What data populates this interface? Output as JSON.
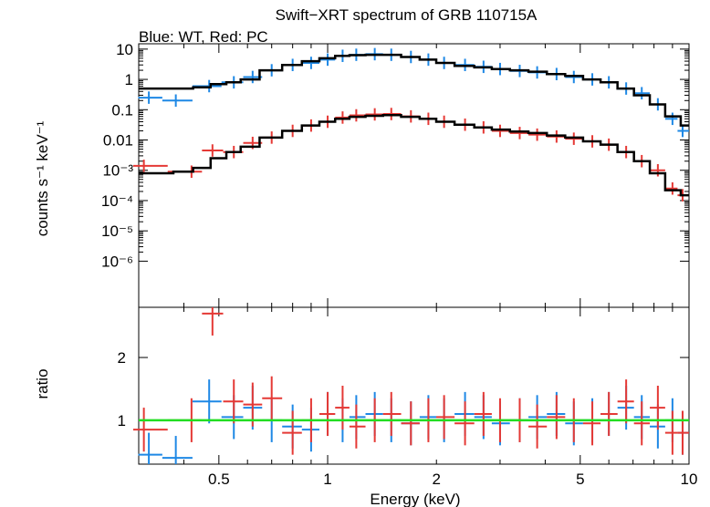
{
  "chart_data": [
    {
      "type": "scatter",
      "title": "Swift−XRT spectrum of GRB 110715A",
      "subtitle": "Blue: WT, Red: PC",
      "xlabel": "Energy (keV)",
      "ylabel": "counts s⁻¹ keV⁻¹",
      "xscale": "log",
      "yscale": "log",
      "xlim": [
        0.3,
        10
      ],
      "ylim": [
        3e-08,
        15
      ],
      "y_ticks": [
        {
          "value": 10,
          "label": "10"
        },
        {
          "value": 1,
          "label": "1"
        },
        {
          "value": 0.1,
          "label": "0.1"
        },
        {
          "value": 0.01,
          "label": "0.01"
        },
        {
          "value": 0.001,
          "label": "10⁻³"
        },
        {
          "value": 0.0001,
          "label": "10⁻⁴"
        },
        {
          "value": 1e-05,
          "label": "10⁻⁵"
        },
        {
          "value": 1e-06,
          "label": "10⁻⁶"
        }
      ],
      "series": [
        {
          "color": "#1e88e5",
          "x": [
            0.32,
            0.38,
            0.47,
            0.55,
            0.62,
            0.7,
            0.8,
            0.9,
            1.0,
            1.1,
            1.2,
            1.35,
            1.5,
            1.7,
            1.9,
            2.1,
            2.4,
            2.7,
            3.0,
            3.4,
            3.8,
            4.3,
            4.8,
            5.4,
            6.0,
            6.7,
            7.4,
            8.2,
            9.0,
            9.6
          ],
          "y": [
            0.25,
            0.2,
            0.6,
            0.8,
            1.2,
            2.0,
            3.0,
            3.5,
            4.5,
            6.0,
            6.5,
            6.8,
            6.5,
            5.5,
            4.5,
            3.5,
            3.0,
            2.6,
            2.2,
            1.9,
            1.7,
            1.5,
            1.2,
            1.0,
            0.8,
            0.5,
            0.35,
            0.15,
            0.05,
            0.02
          ]
        },
        {
          "color": "#e53935",
          "x": [
            0.31,
            0.42,
            0.48,
            0.55,
            0.62,
            0.7,
            0.8,
            0.9,
            1.0,
            1.1,
            1.2,
            1.35,
            1.5,
            1.7,
            1.9,
            2.1,
            2.4,
            2.7,
            3.0,
            3.4,
            3.8,
            4.3,
            4.8,
            5.4,
            6.0,
            6.7,
            7.4,
            8.2,
            9.0,
            9.6
          ],
          "y": [
            0.0014,
            0.0009,
            0.0045,
            0.004,
            0.008,
            0.012,
            0.02,
            0.03,
            0.04,
            0.055,
            0.065,
            0.07,
            0.072,
            0.06,
            0.05,
            0.04,
            0.032,
            0.026,
            0.02,
            0.017,
            0.015,
            0.013,
            0.011,
            0.009,
            0.007,
            0.004,
            0.002,
            0.001,
            0.00025,
            0.00015
          ]
        }
      ],
      "models": [
        {
          "color": "#000000",
          "x": [
            0.3,
            0.35,
            0.4,
            0.45,
            0.5,
            0.55,
            0.6,
            0.7,
            0.8,
            0.9,
            1.0,
            1.1,
            1.2,
            1.35,
            1.5,
            1.7,
            1.9,
            2.1,
            2.4,
            2.7,
            3.0,
            3.4,
            3.8,
            4.3,
            4.8,
            5.4,
            6.0,
            6.7,
            7.4,
            8.2,
            9.0,
            10.0
          ],
          "y": [
            0.5,
            0.5,
            0.5,
            0.55,
            0.7,
            0.8,
            1.0,
            2.0,
            3.0,
            4.0,
            5.0,
            6.0,
            6.3,
            6.5,
            6.5,
            5.5,
            4.5,
            3.5,
            2.8,
            2.5,
            2.2,
            2.0,
            1.8,
            1.5,
            1.3,
            1.0,
            0.8,
            0.5,
            0.3,
            0.15,
            0.06,
            0.03
          ]
        },
        {
          "color": "#000000",
          "x": [
            0.3,
            0.35,
            0.4,
            0.45,
            0.5,
            0.55,
            0.6,
            0.7,
            0.8,
            0.9,
            1.0,
            1.1,
            1.2,
            1.35,
            1.5,
            1.7,
            1.9,
            2.1,
            2.4,
            2.7,
            3.0,
            3.4,
            3.8,
            4.3,
            4.8,
            5.4,
            6.0,
            6.7,
            7.4,
            8.2,
            9.0,
            10.0
          ],
          "y": [
            0.0008,
            0.0008,
            0.0009,
            0.0012,
            0.0025,
            0.004,
            0.006,
            0.012,
            0.02,
            0.03,
            0.04,
            0.05,
            0.058,
            0.063,
            0.066,
            0.058,
            0.05,
            0.04,
            0.032,
            0.026,
            0.022,
            0.019,
            0.017,
            0.014,
            0.012,
            0.009,
            0.007,
            0.004,
            0.002,
            0.0008,
            0.00022,
            0.00015
          ]
        }
      ]
    },
    {
      "type": "scatter",
      "xlabel": "Energy (keV)",
      "ylabel": "ratio",
      "xscale": "log",
      "xlim": [
        0.3,
        10
      ],
      "ylim": [
        0.3,
        2.8
      ],
      "x_ticks": [
        {
          "value": 0.5,
          "label": "0.5"
        },
        {
          "value": 1,
          "label": "1"
        },
        {
          "value": 2,
          "label": "2"
        },
        {
          "value": 5,
          "label": "5"
        },
        {
          "value": 10,
          "label": "10"
        }
      ],
      "y_ticks": [
        {
          "value": 1,
          "label": "1"
        },
        {
          "value": 2,
          "label": "2"
        }
      ],
      "reference_line": {
        "y": 1,
        "color": "#22dd22"
      },
      "series": [
        {
          "color": "#1e88e5",
          "x": [
            0.32,
            0.38,
            0.47,
            0.55,
            0.62,
            0.7,
            0.8,
            0.9,
            1.0,
            1.1,
            1.2,
            1.35,
            1.5,
            1.7,
            1.9,
            2.1,
            2.4,
            2.7,
            3.0,
            3.4,
            3.8,
            4.3,
            4.8,
            5.4,
            6.0,
            6.7,
            7.4,
            8.2,
            9.0,
            9.6
          ],
          "y": [
            0.45,
            0.4,
            1.3,
            1.05,
            1.2,
            1.0,
            0.9,
            0.85,
            1.1,
            1.0,
            1.05,
            1.1,
            1.0,
            0.95,
            1.05,
            1.0,
            1.1,
            1.05,
            0.95,
            1.0,
            1.05,
            1.1,
            0.95,
            1.0,
            1.1,
            1.2,
            1.05,
            0.9,
            1.0,
            0.8
          ]
        },
        {
          "color": "#e53935",
          "x": [
            0.31,
            0.42,
            0.48,
            0.55,
            0.62,
            0.7,
            0.8,
            0.9,
            1.0,
            1.1,
            1.2,
            1.35,
            1.5,
            1.7,
            1.9,
            2.1,
            2.4,
            2.7,
            3.0,
            3.4,
            3.8,
            4.3,
            4.8,
            5.4,
            6.0,
            6.7,
            7.4,
            8.2,
            9.0,
            9.6
          ],
          "y": [
            0.85,
            1.0,
            2.7,
            1.3,
            1.25,
            1.35,
            0.8,
            1.0,
            1.1,
            1.2,
            0.9,
            1.0,
            1.1,
            0.95,
            1.0,
            1.05,
            0.95,
            1.1,
            1.0,
            1.0,
            0.9,
            1.05,
            1.0,
            0.95,
            1.1,
            1.3,
            0.95,
            1.2,
            0.8,
            0.8
          ]
        }
      ]
    }
  ]
}
